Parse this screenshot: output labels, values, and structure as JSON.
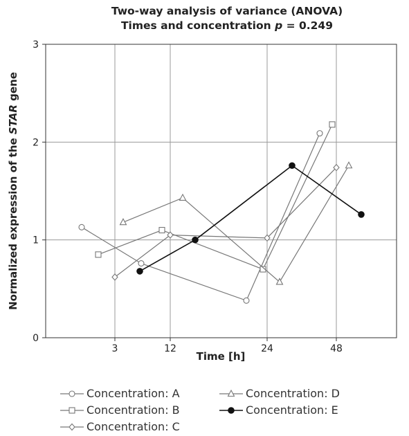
{
  "chart_data": {
    "type": "line",
    "title_line1": "Two-way analysis of variance (ANOVA)",
    "title_line2_prefix": "Times and concentration ",
    "title_line2_p": "p",
    "title_line2_suffix": " = 0.249",
    "xlabel": "Time [h]",
    "ylabel_prefix": "Normalized expression of the ",
    "ylabel_gene": "STAR",
    "ylabel_suffix": " gene",
    "x_ticks": [
      "3",
      "12",
      "24",
      "48"
    ],
    "y_ticks": [
      0,
      1,
      2,
      3
    ],
    "ylim": [
      0,
      3
    ],
    "grid": true,
    "legend_position": "bottom",
    "series": [
      {
        "name": "Concentration: A",
        "marker": "circle-open",
        "color": "#777777",
        "points": [
          {
            "time_group": "3",
            "offset": -0.4,
            "y": 1.13
          },
          {
            "time_group": "12",
            "offset": -0.35,
            "y": 0.76
          },
          {
            "time_group": "24",
            "offset": -0.25,
            "y": 0.38
          },
          {
            "time_group": "48",
            "offset": -0.2,
            "y": 2.09
          }
        ]
      },
      {
        "name": "Concentration: B",
        "marker": "square-open",
        "color": "#777777",
        "points": [
          {
            "time_group": "3",
            "offset": -0.2,
            "y": 0.85
          },
          {
            "time_group": "12",
            "offset": -0.1,
            "y": 1.1
          },
          {
            "time_group": "24",
            "offset": -0.05,
            "y": 0.7
          },
          {
            "time_group": "48",
            "offset": -0.05,
            "y": 2.18
          }
        ]
      },
      {
        "name": "Concentration: C",
        "marker": "diamond-open",
        "color": "#777777",
        "points": [
          {
            "time_group": "3",
            "offset": 0.0,
            "y": 0.62
          },
          {
            "time_group": "12",
            "offset": 0.0,
            "y": 1.05
          },
          {
            "time_group": "24",
            "offset": 0.0,
            "y": 1.02
          },
          {
            "time_group": "48",
            "offset": 0.0,
            "y": 1.74
          }
        ]
      },
      {
        "name": "Concentration: D",
        "marker": "triangle-open",
        "color": "#777777",
        "points": [
          {
            "time_group": "3",
            "offset": 0.1,
            "y": 1.18
          },
          {
            "time_group": "12",
            "offset": 0.15,
            "y": 1.43
          },
          {
            "time_group": "24",
            "offset": 0.15,
            "y": 0.57
          },
          {
            "time_group": "48",
            "offset": 0.15,
            "y": 1.76
          }
        ]
      },
      {
        "name": "Concentration: E",
        "marker": "circle-filled",
        "color": "#111111",
        "points": [
          {
            "time_group": "3",
            "offset": 0.3,
            "y": 0.68
          },
          {
            "time_group": "12",
            "offset": 0.3,
            "y": 1.0
          },
          {
            "time_group": "24",
            "offset": 0.3,
            "y": 1.76
          },
          {
            "time_group": "48",
            "offset": 0.3,
            "y": 1.26
          }
        ]
      }
    ]
  }
}
